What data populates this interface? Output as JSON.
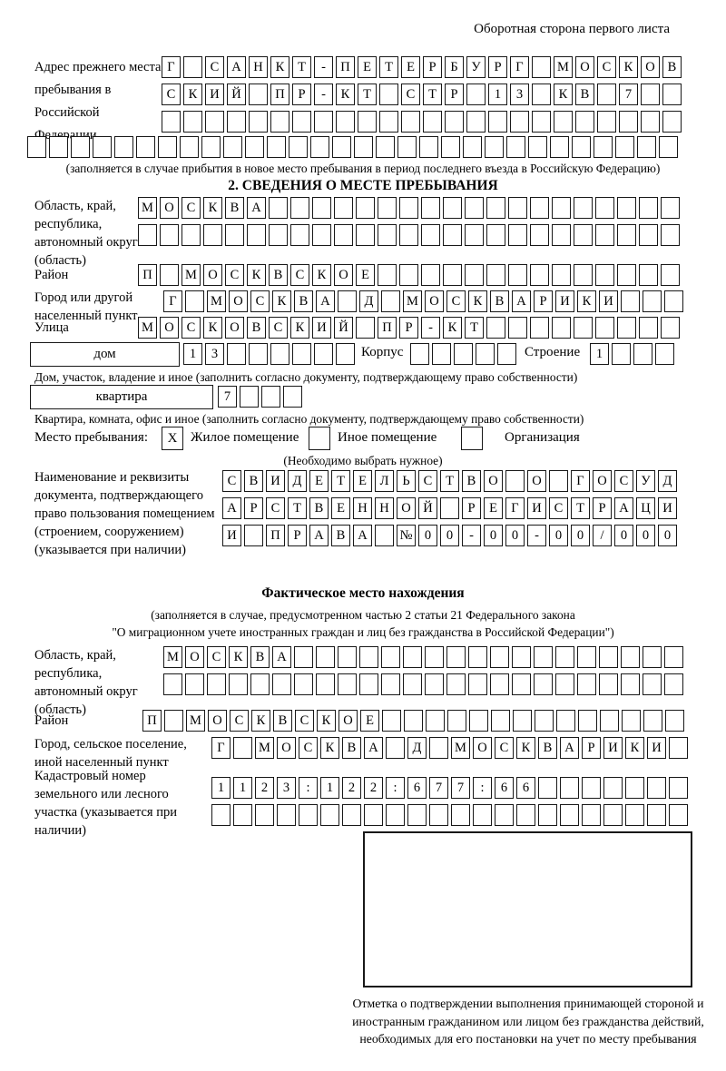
{
  "page_header": "Оборотная сторона первого листа",
  "prev_address": {
    "label": "Адрес прежнего места пребывания в Российской Федерации",
    "rows": [
      "Г САНКТ-ПЕТЕРБУРГ МОСКОВ",
      "СКИЙ ПР-КТ СТР 13 КВ 7",
      "",
      ""
    ],
    "note": "(заполняется в случае прибытия в новое место пребывания в период последнего въезда в Российскую Федерацию)"
  },
  "section2": {
    "title": "2. СВЕДЕНИЯ О МЕСТЕ ПРЕБЫВАНИЯ",
    "region": {
      "label": "Область, край, республика, автономный округ (область)",
      "value": "МОСКВА",
      "value2": ""
    },
    "district": {
      "label": "Район",
      "value": "П МОСКВСКОЕ"
    },
    "city": {
      "label": "Город или другой населенный пункт",
      "value": "Г МОСКВА Д МОСКВАРИКИ"
    },
    "street": {
      "label": "Улица",
      "value": "МОСКОВСКИЙ ПР-КТ"
    },
    "house": {
      "label": "дом",
      "value": "13",
      "korpus_label": "Корпус",
      "korpus_value": "",
      "stroenie_label": "Строение",
      "stroenie_value": "1",
      "caption": "Дом, участок, владение и иное (заполнить согласно документу, подтверждающему право собственности)"
    },
    "apartment": {
      "label": "квартира",
      "value": "7",
      "caption": "Квартира, комната, офис и иное (заполнить согласно документу, подтверждающему право собственности)"
    },
    "stay_type": {
      "label": "Место пребывания:",
      "options": [
        {
          "label": "Жилое помещение",
          "mark": "X"
        },
        {
          "label": "Иное помещение",
          "mark": ""
        },
        {
          "label": "Организация",
          "mark": ""
        }
      ],
      "note": "(Необходимо выбрать нужное)"
    },
    "document": {
      "label": "Наименование и реквизиты документа, подтверждающего право пользования помещением (строением, сооружением) (указывается при наличии)",
      "rows": [
        "СВИДЕТЕЛЬСТВО О ГОСУД",
        "АРСТВЕННОЙ РЕГИСТРАЦИ",
        "И ПРАВА №00-00-00/000"
      ]
    }
  },
  "actual_location": {
    "title": "Фактическое место нахождения",
    "note_line1": "(заполняется в случае, предусмотренном частью 2 статьи 21 Федерального закона",
    "note_line2": "\"О миграционном учете иностранных граждан и лиц без гражданства в Российской Федерации\")",
    "region": {
      "label": "Область, край, республика, автономный округ (область)",
      "value": "МОСКВА",
      "value2": ""
    },
    "district": {
      "label": "Район",
      "value": "П МОСКВСКОЕ"
    },
    "city": {
      "label": "Город, сельское поселение, иной населенный пункт",
      "value": "Г МОСКВА Д МОСКВАРИКИ"
    },
    "cadastral": {
      "label": "Кадастровый номер земельного или лесного участка (указывается при наличии)",
      "value": "1123:122:677:66",
      "value2": ""
    },
    "stamp_caption": "Отметка о подтверждении выполнения принимающей стороной и иностранным гражданином или лицом без гражданства действий, необходимых для его постановки на учет по месту пребывания"
  }
}
